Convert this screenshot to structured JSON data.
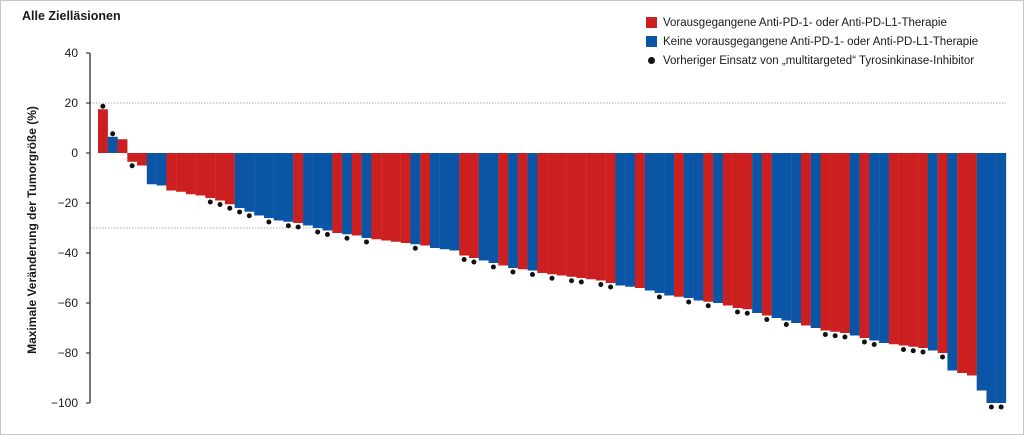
{
  "panel": {
    "title": "Alle Zielläsionen"
  },
  "legend": [
    {
      "key": "prior",
      "label": "Vorausgegangene Anti-PD-1- oder Anti-PD-L1-Therapie",
      "color": "#cc1f1f",
      "marker": "square"
    },
    {
      "key": "naive",
      "label": "Keine vorausgegangene Anti-PD-1- oder Anti-PD-L1-Therapie",
      "color": "#0b55a7",
      "marker": "square"
    },
    {
      "key": "tki",
      "label": "Vorheriger Einsatz von „multitargeted“ Tyrosinkinase-Inhibitor",
      "color": "#111111",
      "marker": "dot"
    }
  ],
  "chart_data": {
    "type": "bar",
    "subtype": "waterfall",
    "title": "Alle Zielläsionen",
    "xlabel": "",
    "ylabel": "Maximale Veränderung der Tumorgröße (%)",
    "ylim": [
      -100,
      40
    ],
    "yticks": [
      40,
      20,
      0,
      -20,
      -40,
      -60,
      -80,
      -100
    ],
    "yticklabels": [
      "40",
      "20",
      "0",
      "−20",
      "−40",
      "−60",
      "−80",
      "−100"
    ],
    "reference_lines": [
      20,
      -30
    ],
    "grid": false,
    "legend_position": "top-right",
    "colors": {
      "prior": "#cc1f1f",
      "naive": "#0b55a7",
      "tki_marker": "#111111",
      "reference_line": "#aaaaaa"
    },
    "bars": [
      {
        "v": 17.5,
        "g": "prior",
        "tki": true
      },
      {
        "v": 6.5,
        "g": "naive",
        "tki": true
      },
      {
        "v": 5.5,
        "g": "prior",
        "tki": false
      },
      {
        "v": -3.5,
        "g": "prior",
        "tki": true
      },
      {
        "v": -5,
        "g": "prior",
        "tki": false
      },
      {
        "v": -12.5,
        "g": "naive",
        "tki": false
      },
      {
        "v": -13,
        "g": "naive",
        "tki": false
      },
      {
        "v": -15,
        "g": "prior",
        "tki": false
      },
      {
        "v": -15.5,
        "g": "prior",
        "tki": false
      },
      {
        "v": -16.5,
        "g": "prior",
        "tki": false
      },
      {
        "v": -17,
        "g": "prior",
        "tki": false
      },
      {
        "v": -18,
        "g": "prior",
        "tki": true
      },
      {
        "v": -19,
        "g": "prior",
        "tki": true
      },
      {
        "v": -20.5,
        "g": "prior",
        "tki": true
      },
      {
        "v": -22,
        "g": "naive",
        "tki": true
      },
      {
        "v": -23.5,
        "g": "naive",
        "tki": true
      },
      {
        "v": -25,
        "g": "naive",
        "tki": false
      },
      {
        "v": -26,
        "g": "naive",
        "tki": true
      },
      {
        "v": -27,
        "g": "naive",
        "tki": false
      },
      {
        "v": -27.5,
        "g": "naive",
        "tki": true
      },
      {
        "v": -28,
        "g": "prior",
        "tki": true
      },
      {
        "v": -29,
        "g": "naive",
        "tki": false
      },
      {
        "v": -30,
        "g": "naive",
        "tki": true
      },
      {
        "v": -31,
        "g": "naive",
        "tki": true
      },
      {
        "v": -32,
        "g": "prior",
        "tki": false
      },
      {
        "v": -32.5,
        "g": "naive",
        "tki": true
      },
      {
        "v": -33,
        "g": "prior",
        "tki": false
      },
      {
        "v": -34,
        "g": "naive",
        "tki": true
      },
      {
        "v": -34.5,
        "g": "prior",
        "tki": false
      },
      {
        "v": -35,
        "g": "prior",
        "tki": false
      },
      {
        "v": -35.5,
        "g": "prior",
        "tki": false
      },
      {
        "v": -36,
        "g": "prior",
        "tki": false
      },
      {
        "v": -36.5,
        "g": "naive",
        "tki": true
      },
      {
        "v": -37,
        "g": "prior",
        "tki": false
      },
      {
        "v": -38,
        "g": "naive",
        "tki": false
      },
      {
        "v": -38.5,
        "g": "naive",
        "tki": false
      },
      {
        "v": -39,
        "g": "naive",
        "tki": false
      },
      {
        "v": -41,
        "g": "prior",
        "tki": true
      },
      {
        "v": -42,
        "g": "prior",
        "tki": true
      },
      {
        "v": -43,
        "g": "naive",
        "tki": false
      },
      {
        "v": -44,
        "g": "naive",
        "tki": true
      },
      {
        "v": -45,
        "g": "prior",
        "tki": false
      },
      {
        "v": -46,
        "g": "naive",
        "tki": true
      },
      {
        "v": -46.5,
        "g": "prior",
        "tki": false
      },
      {
        "v": -47,
        "g": "naive",
        "tki": true
      },
      {
        "v": -48,
        "g": "prior",
        "tki": false
      },
      {
        "v": -48.5,
        "g": "prior",
        "tki": true
      },
      {
        "v": -49,
        "g": "prior",
        "tki": false
      },
      {
        "v": -49.5,
        "g": "prior",
        "tki": true
      },
      {
        "v": -50,
        "g": "prior",
        "tki": true
      },
      {
        "v": -50.5,
        "g": "prior",
        "tki": false
      },
      {
        "v": -51,
        "g": "prior",
        "tki": true
      },
      {
        "v": -52,
        "g": "prior",
        "tki": true
      },
      {
        "v": -53,
        "g": "naive",
        "tki": false
      },
      {
        "v": -53.5,
        "g": "naive",
        "tki": false
      },
      {
        "v": -54,
        "g": "prior",
        "tki": false
      },
      {
        "v": -55,
        "g": "naive",
        "tki": false
      },
      {
        "v": -56,
        "g": "naive",
        "tki": true
      },
      {
        "v": -57,
        "g": "naive",
        "tki": false
      },
      {
        "v": -57.5,
        "g": "prior",
        "tki": false
      },
      {
        "v": -58,
        "g": "naive",
        "tki": true
      },
      {
        "v": -59,
        "g": "naive",
        "tki": false
      },
      {
        "v": -59.5,
        "g": "prior",
        "tki": true
      },
      {
        "v": -60,
        "g": "naive",
        "tki": false
      },
      {
        "v": -61,
        "g": "prior",
        "tki": false
      },
      {
        "v": -62,
        "g": "prior",
        "tki": true
      },
      {
        "v": -62.5,
        "g": "prior",
        "tki": true
      },
      {
        "v": -64,
        "g": "naive",
        "tki": false
      },
      {
        "v": -65,
        "g": "prior",
        "tki": true
      },
      {
        "v": -66,
        "g": "naive",
        "tki": false
      },
      {
        "v": -67,
        "g": "naive",
        "tki": true
      },
      {
        "v": -68,
        "g": "naive",
        "tki": false
      },
      {
        "v": -69,
        "g": "prior",
        "tki": false
      },
      {
        "v": -70,
        "g": "naive",
        "tki": false
      },
      {
        "v": -71,
        "g": "prior",
        "tki": true
      },
      {
        "v": -71.5,
        "g": "prior",
        "tki": true
      },
      {
        "v": -72,
        "g": "prior",
        "tki": true
      },
      {
        "v": -73,
        "g": "naive",
        "tki": false
      },
      {
        "v": -74,
        "g": "prior",
        "tki": true
      },
      {
        "v": -75,
        "g": "naive",
        "tki": true
      },
      {
        "v": -76,
        "g": "naive",
        "tki": false
      },
      {
        "v": -76.5,
        "g": "prior",
        "tki": false
      },
      {
        "v": -77,
        "g": "prior",
        "tki": true
      },
      {
        "v": -77.5,
        "g": "prior",
        "tki": true
      },
      {
        "v": -78,
        "g": "prior",
        "tki": true
      },
      {
        "v": -79,
        "g": "naive",
        "tki": false
      },
      {
        "v": -80,
        "g": "prior",
        "tki": true
      },
      {
        "v": -87,
        "g": "naive",
        "tki": false
      },
      {
        "v": -88,
        "g": "prior",
        "tki": false
      },
      {
        "v": -89,
        "g": "prior",
        "tki": false
      },
      {
        "v": -95,
        "g": "naive",
        "tki": false
      },
      {
        "v": -100,
        "g": "naive",
        "tki": true
      },
      {
        "v": -100,
        "g": "naive",
        "tki": true
      }
    ]
  }
}
